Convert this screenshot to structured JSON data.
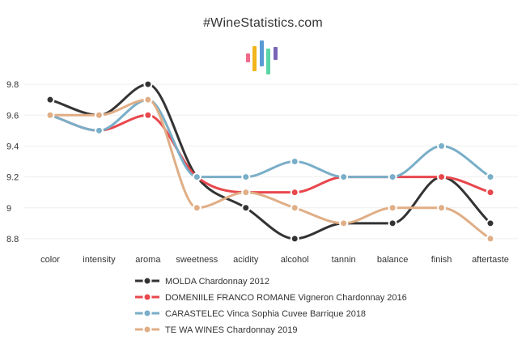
{
  "site_title": "#WineStatistics.com",
  "logo_icon": "wine-statistics-bars-logo",
  "chart_data": {
    "type": "line",
    "title": "",
    "xlabel": "",
    "ylabel": "",
    "categories": [
      "color",
      "intensity",
      "aroma",
      "sweetness",
      "acidity",
      "alcohol",
      "tannin",
      "balance",
      "finish",
      "aftertaste"
    ],
    "ylim": [
      8.7,
      9.9
    ],
    "yticks": [
      8.8,
      9,
      9.2,
      9.4,
      9.6,
      9.8
    ],
    "ytick_labels": [
      "8.8",
      "9",
      "9.2",
      "9.4",
      "9.6",
      "9.8"
    ],
    "grid": true,
    "legend_position": "bottom-center",
    "series": [
      {
        "name": "MOLDA Chardonnay 2012",
        "color": "#333333",
        "values": [
          9.7,
          9.6,
          9.8,
          9.2,
          9.0,
          8.8,
          8.9,
          8.9,
          9.2,
          8.9
        ]
      },
      {
        "name": "DOMENIILE FRANCO ROMANE Vigneron Chardonnay 2016",
        "color": "#e8474c",
        "values": [
          9.6,
          9.5,
          9.6,
          9.2,
          9.1,
          9.1,
          9.2,
          9.2,
          9.2,
          9.1
        ]
      },
      {
        "name": "CARASTELEC Vinca Sophia Cuvee Barrique 2018",
        "color": "#79aec8",
        "values": [
          9.6,
          9.5,
          9.7,
          9.2,
          9.2,
          9.3,
          9.2,
          9.2,
          9.4,
          9.2
        ]
      },
      {
        "name": "TE WA WINES Chardonnay 2019",
        "color": "#e0ae86",
        "values": [
          9.6,
          9.6,
          9.7,
          9.0,
          9.1,
          9.0,
          8.9,
          9.0,
          9.0,
          8.8
        ]
      }
    ]
  }
}
